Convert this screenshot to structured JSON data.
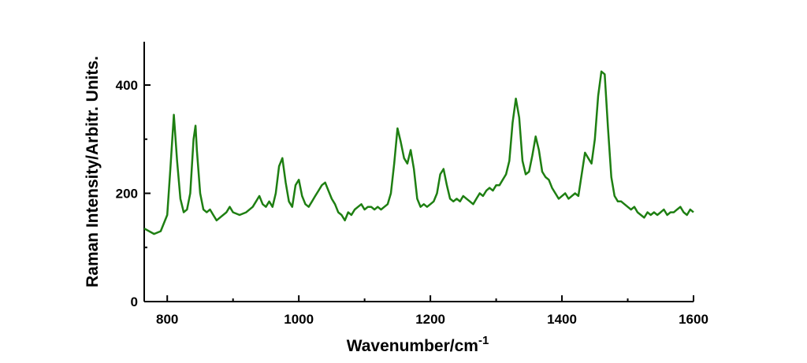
{
  "chart_data": {
    "type": "line",
    "xlabel": "Wavenumber/cm",
    "xlabel_superscript": "-1",
    "ylabel": "Raman Intensity/Arbitr. Units.",
    "xlim": [
      765,
      1600
    ],
    "ylim": [
      0,
      480
    ],
    "xticks": [
      800,
      1000,
      1200,
      1400,
      1600
    ],
    "xminor": [
      900,
      1100,
      1300,
      1500
    ],
    "yticks": [
      0,
      200,
      400
    ],
    "yminor": [
      100,
      300
    ],
    "color": "#1e7f12",
    "x": [
      765,
      780,
      790,
      800,
      805,
      810,
      815,
      820,
      825,
      830,
      835,
      840,
      843,
      845,
      850,
      855,
      860,
      865,
      870,
      875,
      880,
      890,
      895,
      900,
      910,
      920,
      930,
      935,
      940,
      945,
      950,
      955,
      960,
      965,
      970,
      975,
      980,
      985,
      990,
      995,
      1000,
      1005,
      1010,
      1015,
      1020,
      1025,
      1030,
      1035,
      1040,
      1045,
      1050,
      1055,
      1060,
      1065,
      1070,
      1075,
      1080,
      1085,
      1090,
      1095,
      1100,
      1105,
      1110,
      1115,
      1120,
      1125,
      1130,
      1135,
      1140,
      1145,
      1150,
      1155,
      1160,
      1165,
      1170,
      1175,
      1180,
      1185,
      1190,
      1195,
      1200,
      1205,
      1210,
      1215,
      1220,
      1225,
      1230,
      1235,
      1240,
      1245,
      1250,
      1255,
      1260,
      1265,
      1270,
      1275,
      1280,
      1285,
      1290,
      1295,
      1300,
      1305,
      1310,
      1315,
      1320,
      1325,
      1330,
      1335,
      1340,
      1345,
      1350,
      1355,
      1360,
      1365,
      1370,
      1375,
      1380,
      1385,
      1390,
      1395,
      1400,
      1405,
      1410,
      1415,
      1420,
      1425,
      1430,
      1435,
      1440,
      1445,
      1450,
      1455,
      1460,
      1465,
      1470,
      1475,
      1480,
      1485,
      1490,
      1495,
      1500,
      1505,
      1510,
      1515,
      1520,
      1525,
      1530,
      1535,
      1540,
      1545,
      1550,
      1555,
      1560,
      1565,
      1570,
      1575,
      1580,
      1585,
      1590,
      1595,
      1600
    ],
    "values": [
      135,
      125,
      130,
      160,
      250,
      345,
      260,
      190,
      165,
      170,
      200,
      300,
      325,
      280,
      200,
      170,
      165,
      170,
      160,
      150,
      155,
      165,
      175,
      165,
      160,
      165,
      175,
      185,
      195,
      180,
      175,
      185,
      175,
      200,
      250,
      265,
      220,
      185,
      175,
      215,
      225,
      195,
      180,
      175,
      185,
      195,
      205,
      215,
      220,
      205,
      190,
      180,
      165,
      160,
      150,
      165,
      160,
      170,
      175,
      180,
      170,
      175,
      175,
      170,
      175,
      170,
      175,
      180,
      200,
      255,
      320,
      295,
      265,
      255,
      280,
      245,
      190,
      175,
      180,
      175,
      180,
      185,
      200,
      235,
      245,
      215,
      190,
      185,
      190,
      185,
      195,
      190,
      185,
      180,
      190,
      200,
      195,
      205,
      210,
      205,
      215,
      215,
      225,
      235,
      260,
      330,
      375,
      340,
      260,
      235,
      240,
      270,
      305,
      280,
      240,
      230,
      225,
      210,
      200,
      190,
      195,
      200,
      190,
      195,
      200,
      195,
      235,
      275,
      265,
      255,
      300,
      380,
      425,
      420,
      320,
      230,
      195,
      185,
      185,
      180,
      175,
      170,
      175,
      165,
      160,
      155,
      165,
      160,
      165,
      160,
      165,
      170,
      160,
      165,
      165,
      170,
      175,
      165,
      160,
      170,
      165
    ]
  }
}
